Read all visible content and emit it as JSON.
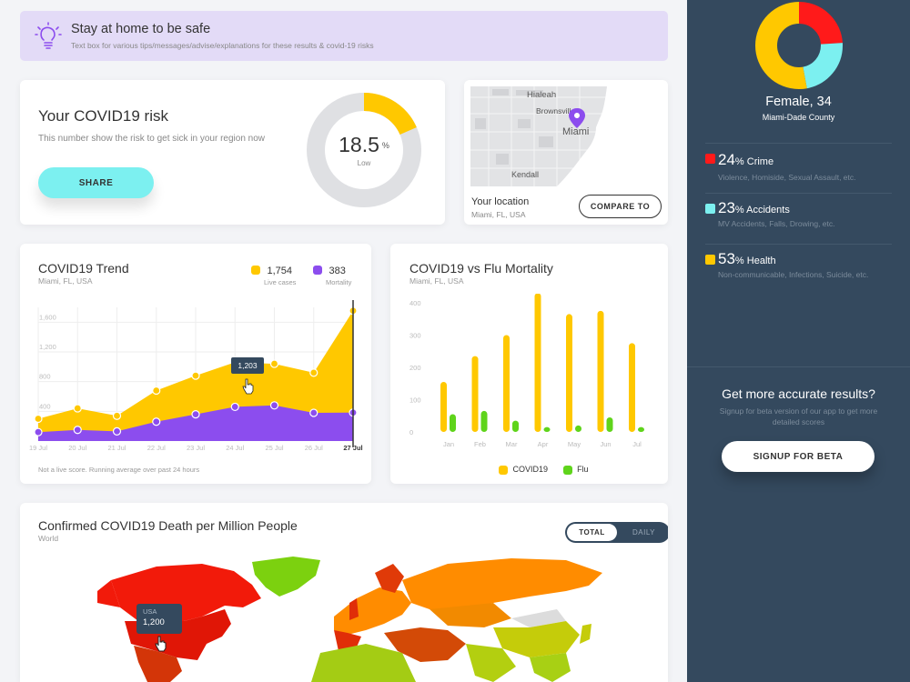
{
  "tip": {
    "title": "Stay at home to be safe",
    "text": "Text box for various tips/messages/advise/explanations for these results & covid-19 risks"
  },
  "risk": {
    "title": "Your COVID19 risk",
    "description": "This number show the risk to get sick in your region now",
    "value": "18.5",
    "unit": "%",
    "level": "Low",
    "gauge_fraction": 0.185,
    "share_label": "SHARE"
  },
  "location": {
    "label": "Your location",
    "place": "Miami, FL, USA",
    "compare_label": "COMPARE TO",
    "map_labels": [
      "Hialeah",
      "Brownsville",
      "Miami",
      "Kendall"
    ]
  },
  "trend": {
    "title": "COVID19 Trend",
    "subtitle": "Miami, FL, USA",
    "legend": [
      {
        "value": "1,754",
        "label": "Live cases",
        "color": "#ffc800"
      },
      {
        "value": "383",
        "label": "Mortality",
        "color": "#8c4dee"
      }
    ],
    "tooltip": "1,203",
    "footnote": "Not a live score. Running average over past 24 hours"
  },
  "mortality": {
    "title": "COVID19 vs Flu Mortality",
    "subtitle": "Miami, FL, USA",
    "legend": [
      {
        "label": "COVID19",
        "color": "#ffc800"
      },
      {
        "label": "Flu",
        "color": "#5fd41b"
      }
    ]
  },
  "deaths": {
    "title": "Confirmed COVID19 Death per Million People",
    "subtitle": "World",
    "toggle_total": "TOTAL",
    "toggle_daily": "DAILY",
    "tooltip_country": "USA",
    "tooltip_value": "1,200"
  },
  "profile": {
    "name": "Female, 34",
    "county": "Miami-Dade County",
    "stats": [
      {
        "value": "24",
        "label": "% Crime",
        "desc": "Violence, Homiside, Sexual Assault, etc.",
        "color": "#ff1a1a"
      },
      {
        "value": "23",
        "label": "% Accidents",
        "desc": "MV Accidents, Falls, Drowing, etc.",
        "color": "#7cf0f0"
      },
      {
        "value": "53",
        "label": "% Health",
        "desc": "Non-communicable, Infections, Suicide, etc.",
        "color": "#ffc800"
      }
    ],
    "cta_title": "Get more accurate results?",
    "cta_text": "Signup for beta version of our app to get more detailed scores",
    "signup_label": "SIGNUP FOR BETA"
  },
  "chart_data": [
    {
      "type": "area",
      "title": "COVID19 Trend",
      "categories": [
        "19 Jul",
        "20 Jul",
        "21 Jul",
        "22 Jul",
        "23 Jul",
        "24 Jul",
        "25 Jul",
        "26 Jul",
        "27 Jul"
      ],
      "y_ticks": [
        "1,600",
        "1,200",
        "800",
        "400"
      ],
      "ylim": [
        0,
        1800
      ],
      "series": [
        {
          "name": "Live cases",
          "color": "#ffc800",
          "values": [
            300,
            440,
            340,
            680,
            880,
            1060,
            1040,
            920,
            1754
          ]
        },
        {
          "name": "Mortality",
          "color": "#8c4dee",
          "values": [
            120,
            150,
            130,
            260,
            360,
            460,
            480,
            380,
            383
          ]
        }
      ]
    },
    {
      "type": "bar",
      "title": "COVID19 vs Flu Mortality",
      "categories": [
        "Jan",
        "Feb",
        "Mar",
        "Apr",
        "May",
        "Jun",
        "Jul"
      ],
      "y_ticks": [
        "400",
        "300",
        "200",
        "100",
        "0"
      ],
      "ylim": [
        0,
        400
      ],
      "series": [
        {
          "name": "COVID19",
          "color": "#ffc800",
          "values": [
            155,
            235,
            300,
            430,
            365,
            375,
            275
          ]
        },
        {
          "name": "Flu",
          "color": "#5fd41b",
          "values": [
            55,
            65,
            35,
            15,
            20,
            45,
            15
          ]
        }
      ]
    },
    {
      "type": "pie",
      "title": "",
      "categories": [
        "Crime",
        "Accidents",
        "Health"
      ],
      "values": [
        24,
        23,
        53
      ],
      "colors": [
        "#ff1a1a",
        "#7cf0f0",
        "#ffc800"
      ]
    }
  ]
}
